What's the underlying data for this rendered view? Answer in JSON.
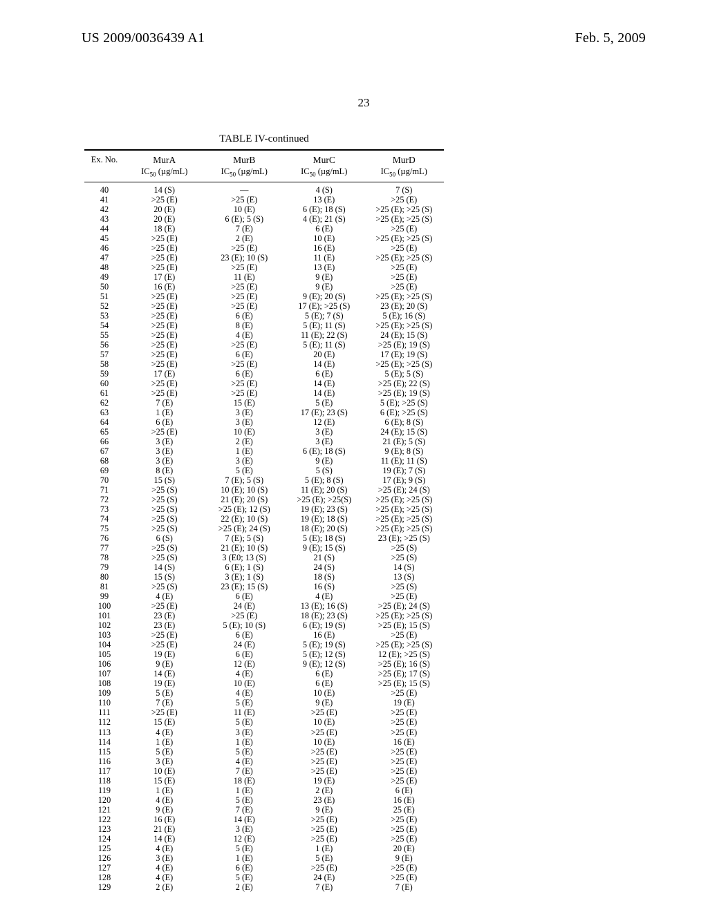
{
  "header": {
    "left": "US 2009/0036439 A1",
    "right": "Feb. 5, 2009"
  },
  "page_number": "23",
  "table": {
    "title": "TABLE IV-continued",
    "header_main": [
      "Ex.\nNo.",
      "MurA",
      "MurB",
      "MurC",
      "MurD"
    ],
    "header_sub_html": "IC<sub>50</sub> (µg/mL)",
    "rows": [
      [
        "40",
        "14 (S)",
        "—",
        "4 (S)",
        "7 (S)"
      ],
      [
        "41",
        ">25 (E)",
        ">25 (E)",
        "13 (E)",
        ">25 (E)"
      ],
      [
        "42",
        "20 (E)",
        "10 (E)",
        "6 (E); 18 (S)",
        ">25 (E); >25 (S)"
      ],
      [
        "43",
        "20 (E)",
        "6 (E); 5 (S)",
        "4 (E); 21 (S)",
        ">25 (E); >25 (S)"
      ],
      [
        "44",
        "18 (E)",
        "7 (E)",
        "6 (E)",
        ">25 (E)"
      ],
      [
        "45",
        ">25 (E)",
        "2 (E)",
        "10 (E)",
        ">25 (E); >25 (S)"
      ],
      [
        "46",
        ">25 (E)",
        ">25 (E)",
        "16 (E)",
        ">25 (E)"
      ],
      [
        "47",
        ">25 (E)",
        "23 (E); 10 (S)",
        "11 (E)",
        ">25 (E); >25 (S)"
      ],
      [
        "48",
        ">25 (E)",
        ">25 (E)",
        "13 (E)",
        ">25 (E)"
      ],
      [
        "49",
        "17 (E)",
        "11 (E)",
        "9 (E)",
        ">25 (E)"
      ],
      [
        "50",
        "16 (E)",
        ">25 (E)",
        "9 (E)",
        ">25 (E)"
      ],
      [
        "51",
        ">25 (E)",
        ">25 (E)",
        "9 (E); 20 (S)",
        ">25 (E); >25 (S)"
      ],
      [
        "52",
        ">25 (E)",
        ">25 (E)",
        "17 (E); >25 (S)",
        "23 (E); 20 (S)"
      ],
      [
        "53",
        ">25 (E)",
        "6 (E)",
        "5 (E); 7 (S)",
        "5 (E); 16 (S)"
      ],
      [
        "54",
        ">25 (E)",
        "8 (E)",
        "5 (E); 11 (S)",
        ">25 (E); >25 (S)"
      ],
      [
        "55",
        ">25 (E)",
        "4 (E)",
        "11 (E); 22 (S)",
        "24 (E); 15 (S)"
      ],
      [
        "56",
        ">25 (E)",
        ">25 (E)",
        "5 (E); 11 (S)",
        ">25 (E); 19 (S)"
      ],
      [
        "57",
        ">25 (E)",
        "6 (E)",
        "20 (E)",
        "17 (E); 19 (S)"
      ],
      [
        "58",
        ">25 (E)",
        ">25 (E)",
        "14 (E)",
        ">25 (E); >25 (S)"
      ],
      [
        "59",
        "17 (E)",
        "6 (E)",
        "6 (E)",
        "5 (E); 5 (S)"
      ],
      [
        "60",
        ">25 (E)",
        ">25 (E)",
        "14 (E)",
        ">25 (E); 22 (S)"
      ],
      [
        "61",
        ">25 (E)",
        ">25 (E)",
        "14 (E)",
        ">25 (E); 19 (S)"
      ],
      [
        "62",
        "7 (E)",
        "15 (E)",
        "5 (E)",
        "5 (E); >25 (S)"
      ],
      [
        "63",
        "1 (E)",
        "3 (E)",
        "17 (E); 23 (S)",
        "6 (E); >25 (S)"
      ],
      [
        "64",
        "6 (E)",
        "3 (E)",
        "12 (E)",
        "6 (E); 8 (S)"
      ],
      [
        "65",
        ">25 (E)",
        "10 (E)",
        "3 (E)",
        "24 (E); 15 (S)"
      ],
      [
        "66",
        "3 (E)",
        "2 (E)",
        "3 (E)",
        "21 (E); 5 (S)"
      ],
      [
        "67",
        "3 (E)",
        "1 (E)",
        "6 (E); 18 (S)",
        "9 (E); 8 (S)"
      ],
      [
        "68",
        "3 (E)",
        "3 (E)",
        "9 (E)",
        "11 (E); 11 (S)"
      ],
      [
        "69",
        "8 (E)",
        "5 (E)",
        "5 (S)",
        "19 (E); 7 (S)"
      ],
      [
        "70",
        "15 (S)",
        "7 (E); 5 (S)",
        "5 (E); 8 (S)",
        "17 (E); 9 (S)"
      ],
      [
        "71",
        ">25 (S)",
        "10 (E); 10 (S)",
        "11 (E); 20 (S)",
        ">25 (E); 24 (S)"
      ],
      [
        "72",
        ">25 (S)",
        "21 (E); 20 (S)",
        ">25 (E); >25(S)",
        ">25 (E); >25 (S)"
      ],
      [
        "73",
        ">25 (S)",
        ">25 (E); 12 (S)",
        "19 (E); 23 (S)",
        ">25 (E); >25 (S)"
      ],
      [
        "74",
        ">25 (S)",
        "22 (E); 10 (S)",
        "19 (E); 18 (S)",
        ">25 (E); >25 (S)"
      ],
      [
        "75",
        ">25 (S)",
        ">25 (E); 24 (S)",
        "18 (E); 20 (S)",
        ">25 (E); >25 (S)"
      ],
      [
        "76",
        "6 (S)",
        "7 (E); 5 (S)",
        "5 (E); 18 (S)",
        "23 (E); >25 (S)"
      ],
      [
        "77",
        ">25 (S)",
        "21 (E); 10 (S)",
        "9 (E); 15 (S)",
        ">25 (S)"
      ],
      [
        "78",
        ">25 (S)",
        "3 (E0; 13 (S)",
        "21 (S)",
        ">25 (S)"
      ],
      [
        "79",
        "14 (S)",
        "6 (E); 1 (S)",
        "24 (S)",
        "14 (S)"
      ],
      [
        "80",
        "15 (S)",
        "3 (E); 1 (S)",
        "18 (S)",
        "13 (S)"
      ],
      [
        "81",
        ">25 (S)",
        "23 (E); 15 (S)",
        "16 (S)",
        ">25 (S)"
      ],
      [
        "99",
        "4 (E)",
        "6 (E)",
        "4 (E)",
        ">25 (E)"
      ],
      [
        "100",
        ">25 (E)",
        "24 (E)",
        "13 (E); 16 (S)",
        ">25 (E); 24 (S)"
      ],
      [
        "101",
        "23 (E)",
        ">25 (E)",
        "18 (E); 23 (S)",
        ">25 (E); >25 (S)"
      ],
      [
        "102",
        "23 (E)",
        "5 (E); 10 (S)",
        "6 (E); 19 (S)",
        ">25 (E); 15 (S)"
      ],
      [
        "103",
        ">25 (E)",
        "6 (E)",
        "16 (E)",
        ">25 (E)"
      ],
      [
        "104",
        ">25 (E)",
        "24 (E)",
        "5 (E); 19 (S)",
        ">25 (E); >25 (S)"
      ],
      [
        "105",
        "19 (E)",
        "6 (E)",
        "5 (E); 12 (S)",
        "12 (E); >25 (S)"
      ],
      [
        "106",
        "9 (E)",
        "12 (E)",
        "9 (E); 12 (S)",
        ">25 (E); 16 (S)"
      ],
      [
        "107",
        "14 (E)",
        "4 (E)",
        "6 (E)",
        ">25 (E); 17 (S)"
      ],
      [
        "108",
        "19 (E)",
        "10 (E)",
        "6 (E)",
        ">25 (E); 15 (S)"
      ],
      [
        "109",
        "5 (E)",
        "4 (E)",
        "10 (E)",
        ">25 (E)"
      ],
      [
        "110",
        "7 (E)",
        "5 (E)",
        "9 (E)",
        "19 (E)"
      ],
      [
        "111",
        ">25 (E)",
        "11 (E)",
        ">25 (E)",
        ">25 (E)"
      ],
      [
        "112",
        "15 (E)",
        "5 (E)",
        "10 (E)",
        ">25 (E)"
      ],
      [
        "113",
        "4 (E)",
        "3 (E)",
        ">25 (E)",
        ">25 (E)"
      ],
      [
        "114",
        "1 (E)",
        "1 (E)",
        "10 (E)",
        "16 (E)"
      ],
      [
        "115",
        "5 (E)",
        "5 (E)",
        ">25 (E)",
        ">25 (E)"
      ],
      [
        "116",
        "3 (E)",
        "4 (E)",
        ">25 (E)",
        ">25 (E)"
      ],
      [
        "117",
        "10 (E)",
        "7 (E)",
        ">25 (E)",
        ">25 (E)"
      ],
      [
        "118",
        "15 (E)",
        "18 (E)",
        "19 (E)",
        ">25 (E)"
      ],
      [
        "119",
        "1 (E)",
        "1 (E)",
        "2 (E)",
        "6 (E)"
      ],
      [
        "120",
        "4 (E)",
        "5 (E)",
        "23 (E)",
        "16 (E)"
      ],
      [
        "121",
        "9 (E)",
        "7 (E)",
        "9 (E)",
        "25 (E)"
      ],
      [
        "122",
        "16 (E)",
        "14 (E)",
        ">25 (E)",
        ">25 (E)"
      ],
      [
        "123",
        "21 (E)",
        "3 (E)",
        ">25 (E)",
        ">25 (E)"
      ],
      [
        "124",
        "14 (E)",
        "12 (E)",
        ">25 (E)",
        ">25 (E)"
      ],
      [
        "125",
        "4 (E)",
        "5 (E)",
        "1 (E)",
        "20 (E)"
      ],
      [
        "126",
        "3 (E)",
        "1 (E)",
        "5 (E)",
        "9 (E)"
      ],
      [
        "127",
        "4 (E)",
        "6 (E)",
        ">25 (E)",
        ">25 (E)"
      ],
      [
        "128",
        "4 (E)",
        "5 (E)",
        "24 (E)",
        ">25 (E)"
      ],
      [
        "129",
        "2 (E)",
        "2 (E)",
        "7 (E)",
        "7 (E)"
      ]
    ]
  }
}
